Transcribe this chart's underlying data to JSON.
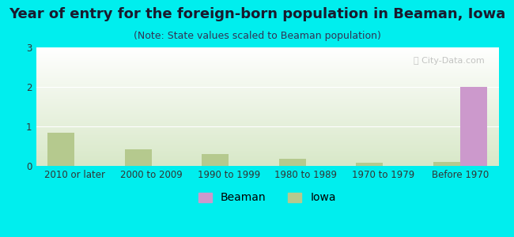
{
  "categories": [
    "2010 or later",
    "2000 to 2009",
    "1990 to 1999",
    "1980 to 1989",
    "1970 to 1979",
    "Before 1970"
  ],
  "beaman_values": [
    0,
    0,
    0,
    0,
    0,
    2.0
  ],
  "iowa_values": [
    0.85,
    0.42,
    0.3,
    0.18,
    0.08,
    0.1
  ],
  "beaman_color": "#cc99cc",
  "iowa_color": "#b5c98e",
  "title": "Year of entry for the foreign-born population in Beaman, Iowa",
  "subtitle": "(Note: State values scaled to Beaman population)",
  "background_color": "#00eeee",
  "ylim": [
    0,
    3
  ],
  "yticks": [
    0,
    1,
    2,
    3
  ],
  "bar_width": 0.35,
  "title_fontsize": 13,
  "subtitle_fontsize": 9,
  "tick_fontsize": 8.5,
  "legend_fontsize": 10
}
